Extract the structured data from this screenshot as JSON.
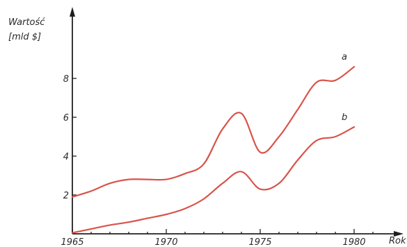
{
  "chart_data": {
    "type": "line",
    "ylabel_line1": "Wartość",
    "ylabel_line2": "[mld $]",
    "xlabel": "Rok",
    "xlim": [
      1965,
      1981
    ],
    "ylim": [
      0,
      10
    ],
    "x_ticks": [
      1965,
      1970,
      1975,
      1980
    ],
    "x_tick_labels": [
      "1965",
      "1970",
      "1975",
      "1980"
    ],
    "y_ticks": [
      2,
      4,
      6,
      8
    ],
    "y_tick_labels": [
      "2",
      "4",
      "6",
      "8"
    ],
    "x_minor_step": 1,
    "grid": false,
    "series": [
      {
        "name": "a",
        "color": "#d9534a",
        "x": [
          1965,
          1966,
          1967,
          1968,
          1969,
          1970,
          1971,
          1972,
          1973,
          1974,
          1975,
          1976,
          1977,
          1978,
          1979,
          1980
        ],
        "y": [
          1.9,
          2.2,
          2.6,
          2.8,
          2.8,
          2.8,
          3.1,
          3.6,
          5.4,
          6.2,
          4.2,
          5.0,
          6.4,
          7.8,
          7.9,
          8.6
        ]
      },
      {
        "name": "b",
        "color": "#d9534a",
        "x": [
          1965,
          1966,
          1967,
          1968,
          1969,
          1970,
          1971,
          1972,
          1973,
          1974,
          1975,
          1976,
          1977,
          1978,
          1979,
          1980
        ],
        "y": [
          0.05,
          0.25,
          0.45,
          0.6,
          0.8,
          1.0,
          1.3,
          1.8,
          2.6,
          3.2,
          2.3,
          2.6,
          3.8,
          4.8,
          5.0,
          5.5
        ]
      }
    ]
  }
}
